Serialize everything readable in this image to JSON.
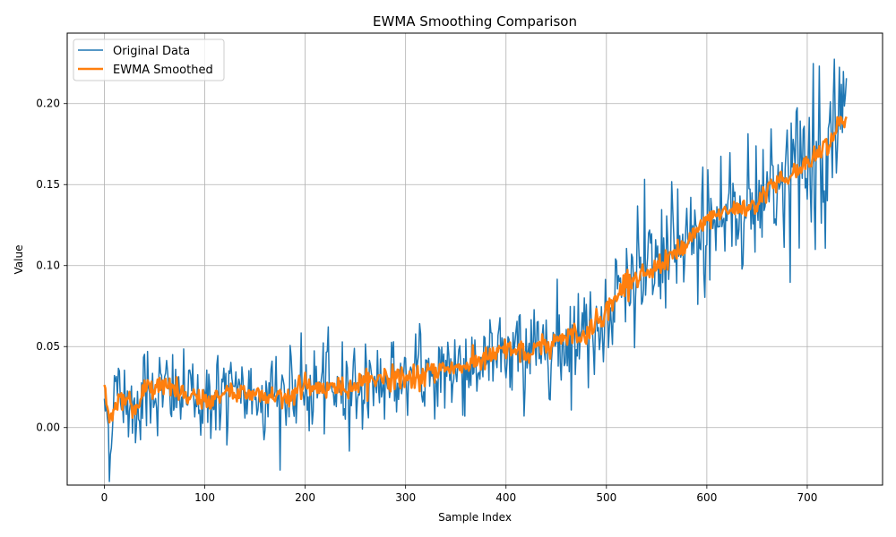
{
  "chart_data": {
    "type": "line",
    "title": "EWMA Smoothing Comparison",
    "xlabel": "Sample Index",
    "ylabel": "Value",
    "xlim": [
      -37,
      775
    ],
    "ylim": [
      -0.0355,
      0.2435
    ],
    "xticks": [
      0,
      100,
      200,
      300,
      400,
      500,
      600,
      700
    ],
    "yticks": [
      0.0,
      0.05,
      0.1,
      0.15,
      0.2
    ],
    "xtick_labels": [
      "0",
      "100",
      "200",
      "300",
      "400",
      "500",
      "600",
      "700"
    ],
    "ytick_labels": [
      "0.00",
      "0.05",
      "0.10",
      "0.15",
      "0.20"
    ],
    "grid": true,
    "legend_position": "top-left",
    "n_points": 740,
    "series": [
      {
        "name": "Original Data",
        "color": "#1f77b4",
        "trend_points": [
          [
            0,
            0.022
          ],
          [
            5,
            -0.01
          ],
          [
            10,
            0.02
          ],
          [
            20,
            0.02
          ],
          [
            30,
            0.01
          ],
          [
            40,
            0.025
          ],
          [
            60,
            0.022
          ],
          [
            80,
            0.02
          ],
          [
            100,
            0.018
          ],
          [
            120,
            0.02
          ],
          [
            140,
            0.02
          ],
          [
            160,
            0.022
          ],
          [
            180,
            0.02
          ],
          [
            200,
            0.022
          ],
          [
            220,
            0.024
          ],
          [
            240,
            0.025
          ],
          [
            260,
            0.027
          ],
          [
            280,
            0.03
          ],
          [
            300,
            0.03
          ],
          [
            320,
            0.033
          ],
          [
            340,
            0.035
          ],
          [
            360,
            0.038
          ],
          [
            380,
            0.042
          ],
          [
            400,
            0.045
          ],
          [
            420,
            0.048
          ],
          [
            440,
            0.052
          ],
          [
            460,
            0.055
          ],
          [
            480,
            0.06
          ],
          [
            500,
            0.07
          ],
          [
            510,
            0.08
          ],
          [
            520,
            0.09
          ],
          [
            540,
            0.095
          ],
          [
            560,
            0.105
          ],
          [
            580,
            0.11
          ],
          [
            600,
            0.125
          ],
          [
            620,
            0.133
          ],
          [
            640,
            0.135
          ],
          [
            650,
            0.14
          ],
          [
            660,
            0.15
          ],
          [
            680,
            0.155
          ],
          [
            700,
            0.165
          ],
          [
            720,
            0.175
          ],
          [
            730,
            0.185
          ],
          [
            739,
            0.19
          ]
        ]
      },
      {
        "name": "EWMA Smoothed",
        "color": "#ff7f0e",
        "trend_points": [
          [
            0,
            0.023
          ],
          [
            5,
            0.005
          ],
          [
            10,
            0.012
          ],
          [
            20,
            0.022
          ],
          [
            30,
            0.008
          ],
          [
            40,
            0.024
          ],
          [
            60,
            0.026
          ],
          [
            80,
            0.02
          ],
          [
            100,
            0.015
          ],
          [
            120,
            0.022
          ],
          [
            140,
            0.022
          ],
          [
            160,
            0.02
          ],
          [
            180,
            0.019
          ],
          [
            200,
            0.026
          ],
          [
            220,
            0.024
          ],
          [
            240,
            0.025
          ],
          [
            260,
            0.028
          ],
          [
            280,
            0.032
          ],
          [
            300,
            0.03
          ],
          [
            320,
            0.032
          ],
          [
            340,
            0.037
          ],
          [
            360,
            0.038
          ],
          [
            380,
            0.042
          ],
          [
            400,
            0.048
          ],
          [
            420,
            0.045
          ],
          [
            440,
            0.05
          ],
          [
            460,
            0.057
          ],
          [
            480,
            0.058
          ],
          [
            500,
            0.072
          ],
          [
            510,
            0.08
          ],
          [
            520,
            0.092
          ],
          [
            540,
            0.093
          ],
          [
            560,
            0.105
          ],
          [
            580,
            0.112
          ],
          [
            600,
            0.128
          ],
          [
            620,
            0.134
          ],
          [
            640,
            0.136
          ],
          [
            650,
            0.138
          ],
          [
            660,
            0.15
          ],
          [
            680,
            0.152
          ],
          [
            700,
            0.165
          ],
          [
            720,
            0.175
          ],
          [
            730,
            0.187
          ],
          [
            739,
            0.19
          ]
        ]
      }
    ]
  }
}
